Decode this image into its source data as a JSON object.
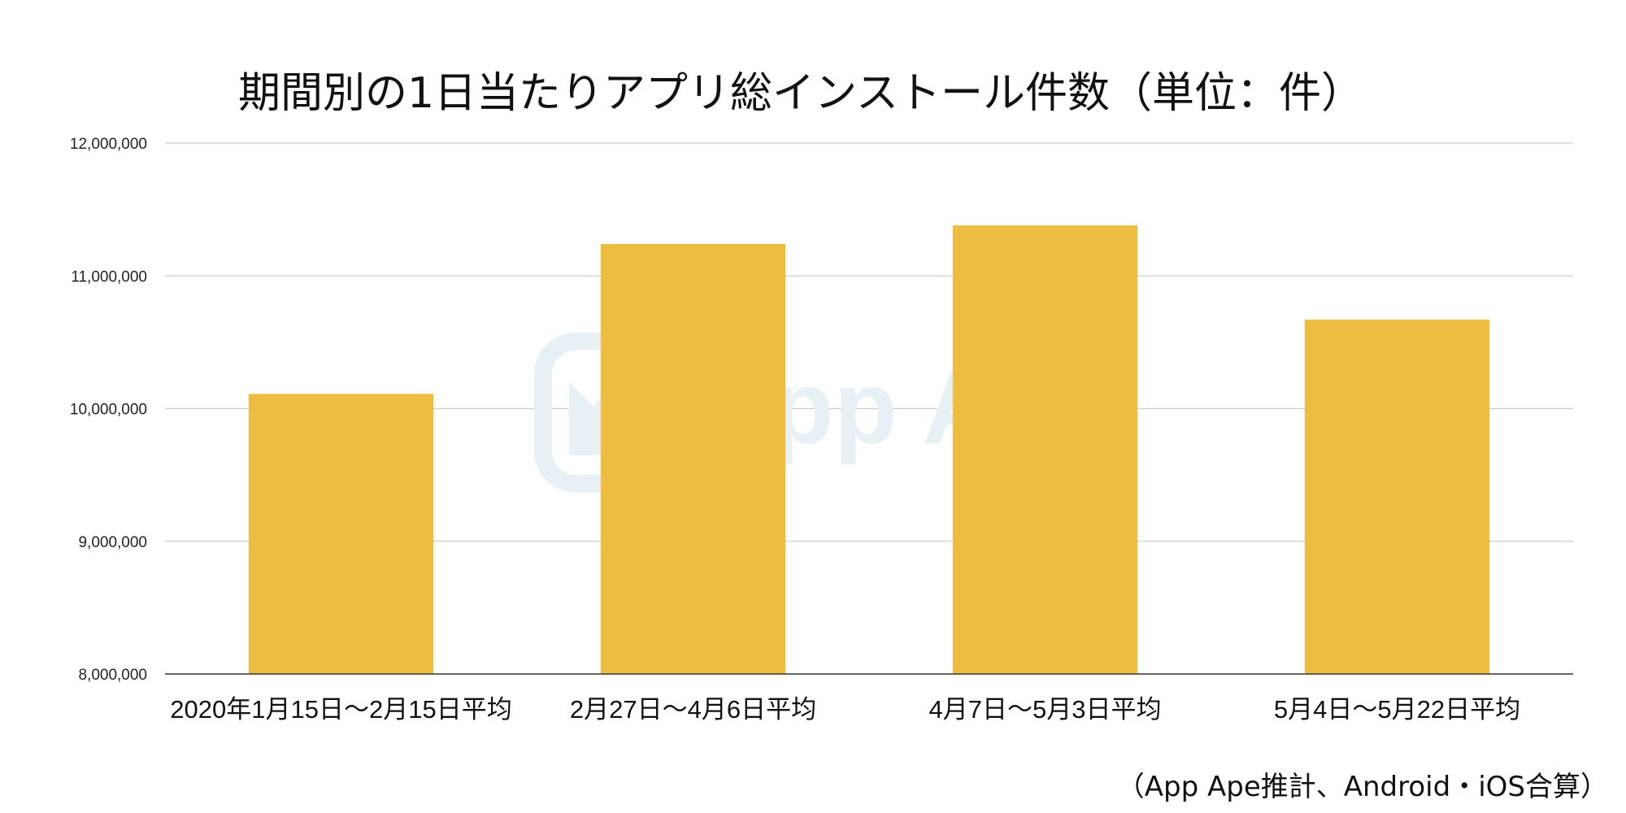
{
  "chart_data": {
    "type": "bar",
    "title": "期間別の1日当たりアプリ総インストール件数（単位：件）",
    "categories": [
      "2020年1月15日〜2月15日平均",
      "2月27日〜4月6日平均",
      "4月7日〜5月3日平均",
      "5月4日〜5月22日平均"
    ],
    "values": [
      10110000,
      11240000,
      11380000,
      10670000
    ],
    "ylim": [
      8000000,
      12000000
    ],
    "yticks": [
      8000000,
      9000000,
      10000000,
      11000000,
      12000000
    ],
    "ytick_labels": [
      "8,000,000",
      "9,000,000",
      "10,000,000",
      "11,000,000",
      "12,000,000"
    ],
    "xlabel": "",
    "ylabel": "",
    "grid": true,
    "bar_color": "#EDBD41",
    "grid_color": "#cccccc",
    "axis_color": "#333333"
  },
  "watermark": {
    "text": "App Ape",
    "color": "#e6f0f5"
  },
  "source_note": "（App Ape推計、Android・iOS合算）"
}
